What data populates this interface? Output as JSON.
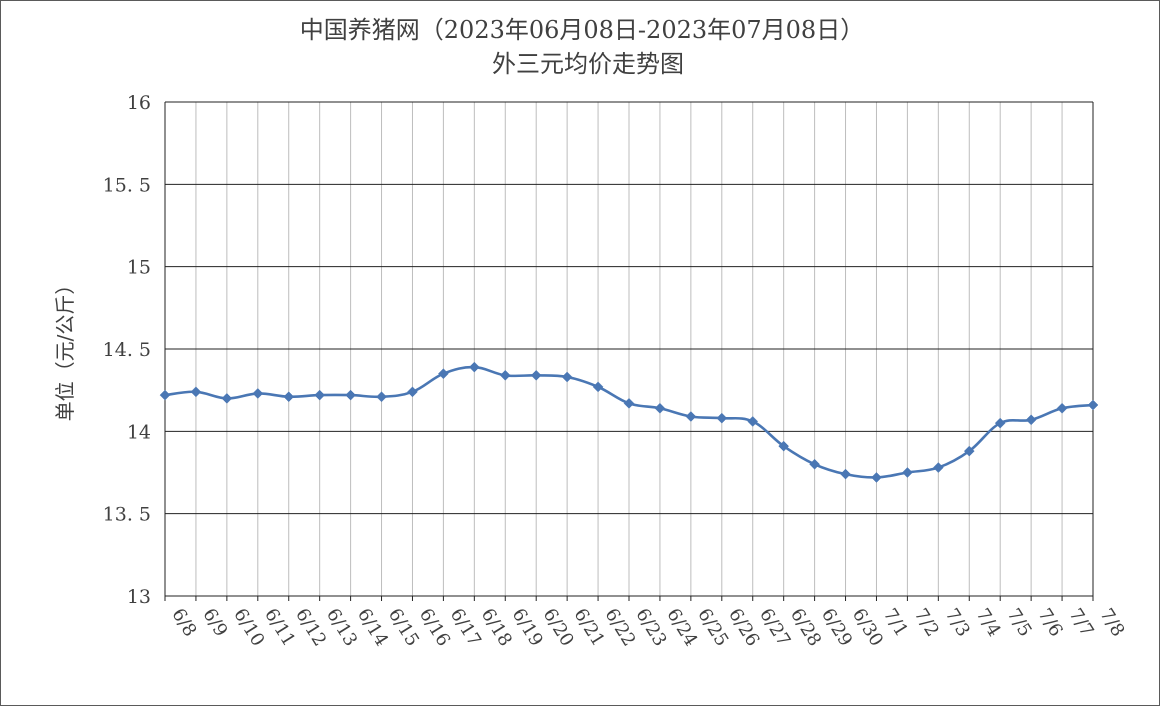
{
  "chart_data": {
    "type": "line",
    "title": "中国养猪网（2023年06月08日-2023年07月08日）",
    "subtitle": "外三元均价走势图",
    "xlabel": "",
    "ylabel": "单位（元/公斤）",
    "ylim": [
      13,
      16
    ],
    "yticks": [
      "13",
      "13.5",
      "14",
      "14.5",
      "15",
      "15.5",
      "16"
    ],
    "grid": true,
    "series_color": "#4a77b4",
    "categories": [
      "6/8",
      "6/9",
      "6/10",
      "6/11",
      "6/12",
      "6/13",
      "6/14",
      "6/15",
      "6/16",
      "6/17",
      "6/18",
      "6/19",
      "6/20",
      "6/21",
      "6/22",
      "6/23",
      "6/24",
      "6/25",
      "6/26",
      "6/27",
      "6/28",
      "6/29",
      "6/30",
      "7/1",
      "7/2",
      "7/3",
      "7/4",
      "7/5",
      "7/6",
      "7/7",
      "7/8"
    ],
    "series": [
      {
        "values": [
          14.22,
          14.24,
          14.2,
          14.23,
          14.21,
          14.22,
          14.22,
          14.21,
          14.24,
          14.35,
          14.39,
          14.34,
          14.34,
          14.33,
          14.27,
          14.17,
          14.14,
          14.09,
          14.08,
          14.06,
          13.91,
          13.8,
          13.74,
          13.72,
          13.75,
          13.78,
          13.88,
          14.05,
          14.07,
          14.14,
          14.16
        ]
      }
    ]
  }
}
